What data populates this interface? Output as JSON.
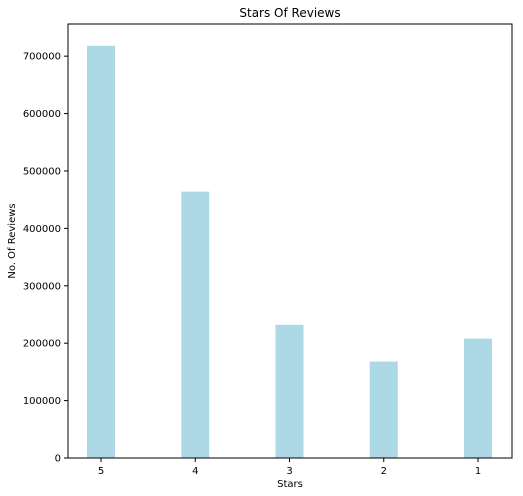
{
  "chart_data": {
    "type": "bar",
    "title": "Stars Of Reviews",
    "xlabel": "Stars",
    "ylabel": "No. Of Reviews",
    "categories": [
      "5",
      "4",
      "3",
      "2",
      "1"
    ],
    "values": [
      718000,
      464000,
      232000,
      168000,
      208000
    ],
    "ylim": [
      0,
      756000
    ],
    "yticks": [
      0,
      100000,
      200000,
      300000,
      400000,
      500000,
      600000,
      700000
    ],
    "ytick_labels": [
      "0",
      "100000",
      "200000",
      "300000",
      "400000",
      "500000",
      "600000",
      "700000"
    ],
    "bar_color": "#add8e6",
    "grid": false,
    "legend": "none"
  }
}
